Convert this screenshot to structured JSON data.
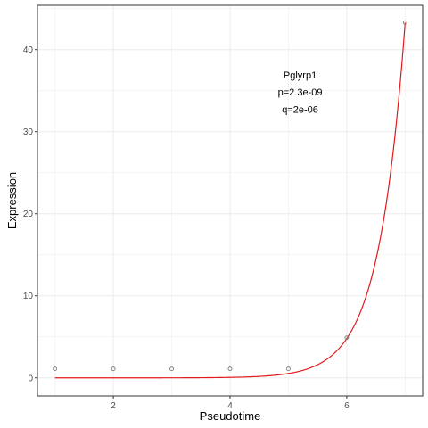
{
  "chart_data": {
    "type": "scatter",
    "xlabel": "Pseudotime",
    "ylabel": "Expression",
    "xlim": [
      0.7,
      7.3
    ],
    "ylim": [
      -2.2,
      45.4
    ],
    "x_ticks": [
      2,
      4,
      6
    ],
    "y_ticks": [
      0,
      10,
      20,
      30,
      40
    ],
    "grid": true,
    "annotations": [
      {
        "text": "Pglyrp1",
        "x": 5.2,
        "y": 36.5
      },
      {
        "text": "p=2.3e-09",
        "x": 5.2,
        "y": 34.4
      },
      {
        "text": "q=2e-06",
        "x": 5.2,
        "y": 32.3
      }
    ],
    "points": {
      "x": [
        1,
        2,
        3,
        4,
        5,
        6,
        7
      ],
      "y": [
        1.1,
        1.1,
        1.1,
        1.1,
        1.1,
        4.9,
        43.3
      ]
    },
    "fit_curve": {
      "color": "#e31a1c",
      "x_range": [
        1,
        7
      ],
      "rate": 2.2,
      "end_value": 43.3
    },
    "colors": {
      "point_stroke": "#7f7f7f",
      "grid": "#ebebeb",
      "panel_border": "#333333"
    }
  }
}
